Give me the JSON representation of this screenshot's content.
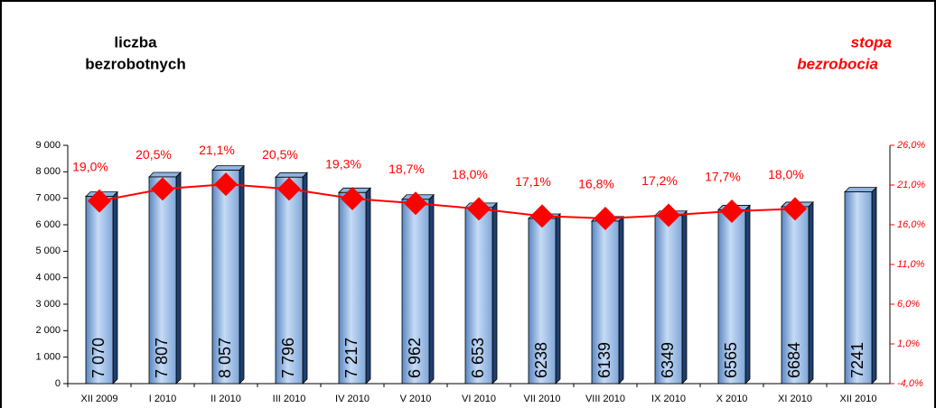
{
  "chart_data": {
    "type": "bar",
    "y_label": [
      "liczba",
      "bezrobotnych"
    ],
    "y2_label": [
      "stopa",
      "bezrobocia"
    ],
    "categories": [
      "XII 2009",
      "I 2010",
      "II 2010",
      "III 2010",
      "IV 2010",
      "V 2010",
      "VI 2010",
      "VII 2010",
      "VIII 2010",
      "IX 2010",
      "X 2010",
      "XI 2010",
      "XII 2010"
    ],
    "series": [
      {
        "type": "bar",
        "color": "#8db4e2",
        "values": [
          7070,
          7807,
          8057,
          7796,
          7217,
          6962,
          6653,
          6238,
          6139,
          6349,
          6565,
          6684,
          7241
        ],
        "value_labels": [
          "7 070",
          "7 807",
          "8 057",
          "7 796",
          "7 217",
          "6 962",
          "6 653",
          "6238",
          "6139",
          "6349",
          "6565",
          "6684",
          "7241"
        ]
      },
      {
        "type": "line",
        "axis": "y2",
        "color": "#ff0000",
        "values": [
          19.0,
          20.5,
          21.1,
          20.5,
          19.3,
          18.7,
          18.0,
          17.1,
          16.8,
          17.2,
          17.7,
          18.0,
          null
        ],
        "value_labels": [
          "19,0%",
          "20,5%",
          "21,1%",
          "20,5%",
          "19,3%",
          "18,7%",
          "18,0%",
          "17,1%",
          "16,8%",
          "17,2%",
          "17,7%",
          "18,0%",
          null
        ]
      }
    ],
    "ylim": [
      0,
      9000
    ],
    "yticks": [
      0,
      {
        "value": 1000,
        "label": "1 000"
      },
      {
        "value": 2000,
        "label": "2 000"
      },
      {
        "value": 3000,
        "label": "3 000"
      },
      {
        "value": 4000,
        "label": "4 000"
      },
      {
        "value": 5000,
        "label": "5 000"
      },
      {
        "value": 6000,
        "label": "6 000"
      },
      {
        "value": 7000,
        "label": "7 000"
      },
      {
        "value": 8000,
        "label": "8 000"
      },
      {
        "value": 9000,
        "label": "9 000"
      }
    ],
    "y2lim": [
      -4,
      26
    ],
    "y2ticks": [
      {
        "value": -4,
        "label": "-4,0%"
      },
      {
        "value": 1,
        "label": "1,0%"
      },
      {
        "value": 6,
        "label": "6,0%"
      },
      {
        "value": 11,
        "label": "11,0%"
      },
      {
        "value": 16,
        "label": "16,0%"
      },
      {
        "value": 21,
        "label": "21,0%"
      },
      {
        "value": 26,
        "label": "26,0%"
      }
    ]
  }
}
